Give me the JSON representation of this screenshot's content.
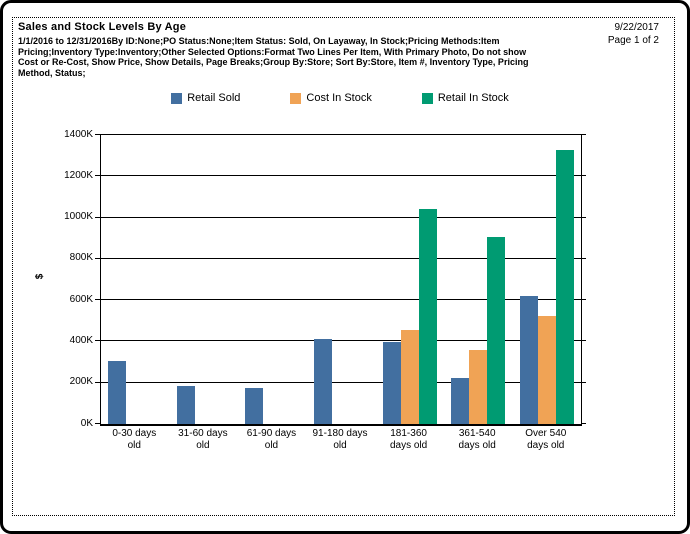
{
  "header": {
    "title": "Sales and Stock Levels By Age",
    "description": "1/1/2016 to 12/31/2016By ID:None;PO Status:None;Item Status: Sold, On Layaway, In Stock;Pricing Methods:Item Pricing;Inventory Type:Inventory;Other Selected Options:Format Two Lines Per Item, With Primary Photo, Do not show Cost or Re-Cost, Show Price, Show Details, Page Breaks;Group By:Store; Sort By:Store, Item #, Inventory Type, Pricing Method, Status;",
    "date": "9/22/2017",
    "page": "Page 1 of 2"
  },
  "chart_data": {
    "type": "bar",
    "title": "",
    "xlabel": "",
    "ylabel": "$",
    "unit": "K (thousands of dollars)",
    "ylim": [
      0,
      1400
    ],
    "y_tick_step": 200,
    "y_tick_labels": [
      "0K",
      "200K",
      "400K",
      "600K",
      "800K",
      "1000K",
      "1200K",
      "1400K"
    ],
    "grid": true,
    "legend_position": "top",
    "categories": [
      "0-30 days old",
      "31-60 days old",
      "61-90 days old",
      "91-180 days old",
      "181-360 days old",
      "361-540 days old",
      "Over 540 days old"
    ],
    "category_label_lines": [
      [
        "0-30 days",
        "old"
      ],
      [
        "31-60 days",
        "old"
      ],
      [
        "61-90 days",
        "old"
      ],
      [
        "91-180 days",
        "old"
      ],
      [
        "181-360",
        "days old"
      ],
      [
        "361-540",
        "days old"
      ],
      [
        "Over 540",
        "days old"
      ]
    ],
    "series": [
      {
        "name": "Retail Sold",
        "color": "#426FA0",
        "values_k": [
          305,
          185,
          175,
          410,
          395,
          225,
          620
        ]
      },
      {
        "name": "Cost In Stock",
        "color": "#F0A355",
        "values_k": [
          0,
          0,
          0,
          0,
          455,
          360,
          525
        ]
      },
      {
        "name": "Retail In Stock",
        "color": "#009B72",
        "values_k": [
          0,
          0,
          0,
          0,
          1040,
          905,
          1325
        ]
      }
    ]
  }
}
